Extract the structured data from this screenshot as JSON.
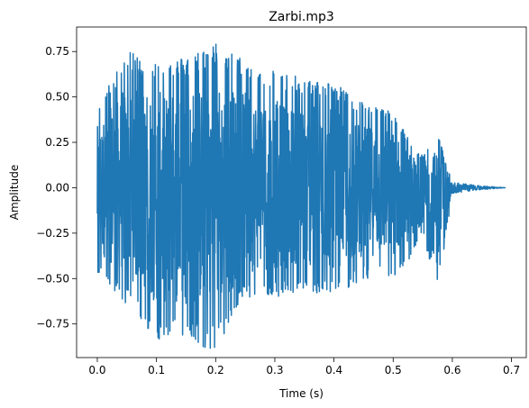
{
  "chart_data": {
    "type": "line",
    "title": "Zarbi.mp3",
    "xlabel": "Time (s)",
    "ylabel": "Amplitude",
    "xlim": [
      -0.035,
      0.725
    ],
    "ylim": [
      -0.935,
      0.885
    ],
    "xticks": [
      0.0,
      0.1,
      0.2,
      0.3,
      0.4,
      0.5,
      0.6,
      0.7
    ],
    "xtick_labels": [
      "0.0",
      "0.1",
      "0.2",
      "0.3",
      "0.4",
      "0.5",
      "0.6",
      "0.7"
    ],
    "yticks": [
      -0.75,
      -0.5,
      -0.25,
      0.0,
      0.25,
      0.5,
      0.75
    ],
    "ytick_labels": [
      "−0.75",
      "−0.50",
      "−0.25",
      "0.00",
      "0.25",
      "0.50",
      "0.75"
    ],
    "grid": false,
    "line_color": "#1f77b4",
    "series": [
      {
        "x": [
          0.0,
          0.05,
          0.1,
          0.15,
          0.2,
          0.25,
          0.3,
          0.35,
          0.4,
          0.45,
          0.5,
          0.53,
          0.55,
          0.575,
          0.6,
          0.65,
          0.69
        ],
        "upper": [
          0.45,
          0.75,
          0.7,
          0.72,
          0.8,
          0.7,
          0.65,
          0.6,
          0.58,
          0.47,
          0.42,
          0.25,
          0.18,
          0.3,
          0.03,
          0.01,
          0.0
        ],
        "lower": [
          -0.47,
          -0.65,
          -0.85,
          -0.85,
          -0.9,
          -0.62,
          -0.6,
          -0.58,
          -0.6,
          -0.5,
          -0.5,
          -0.38,
          -0.25,
          -0.58,
          -0.03,
          -0.01,
          0.0
        ]
      }
    ]
  }
}
